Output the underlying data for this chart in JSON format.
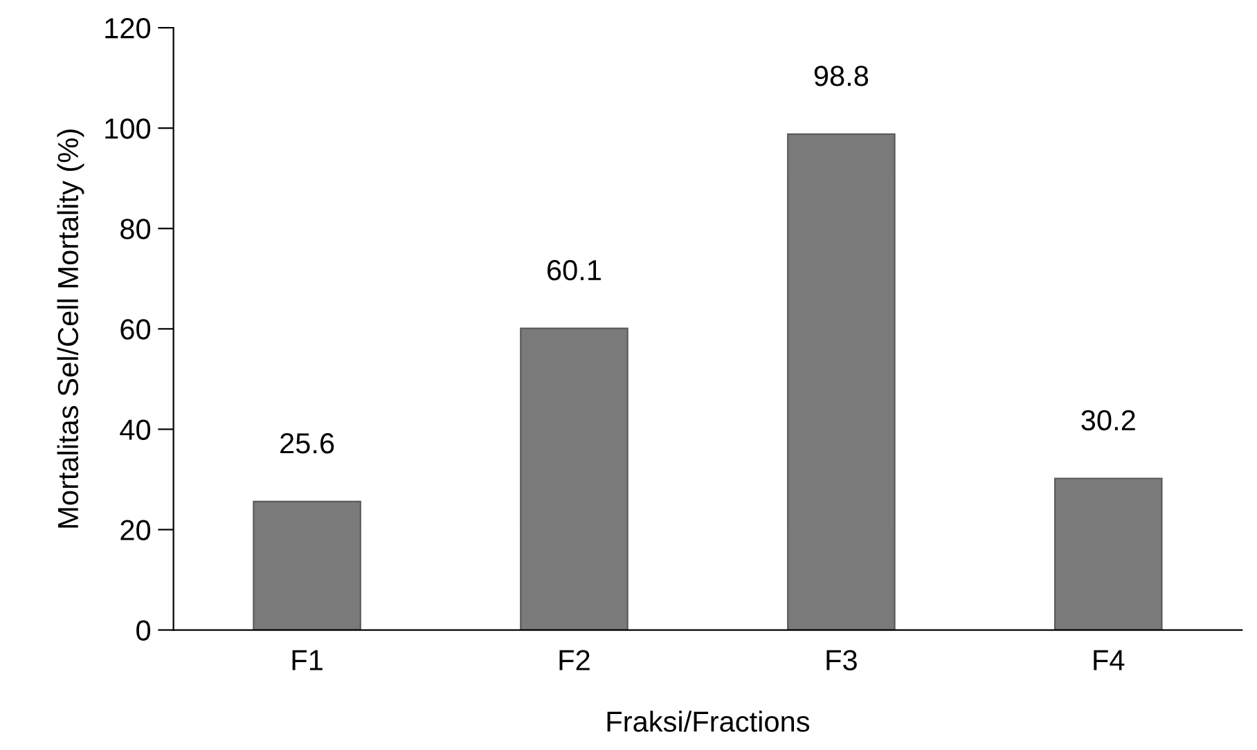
{
  "chart_data": {
    "type": "bar",
    "xlabel": "Fraksi/Fractions",
    "ylabel": "Mortalitas Sel/Cell Mortality (%)",
    "categories": [
      "F1",
      "F2",
      "F3",
      "F4"
    ],
    "values": [
      25.6,
      60.1,
      98.8,
      30.2
    ],
    "color": "#7a7a7a",
    "ylim": [
      0,
      120
    ],
    "yticks": [
      0,
      20,
      40,
      60,
      80,
      100,
      120
    ],
    "data_labels": true
  }
}
